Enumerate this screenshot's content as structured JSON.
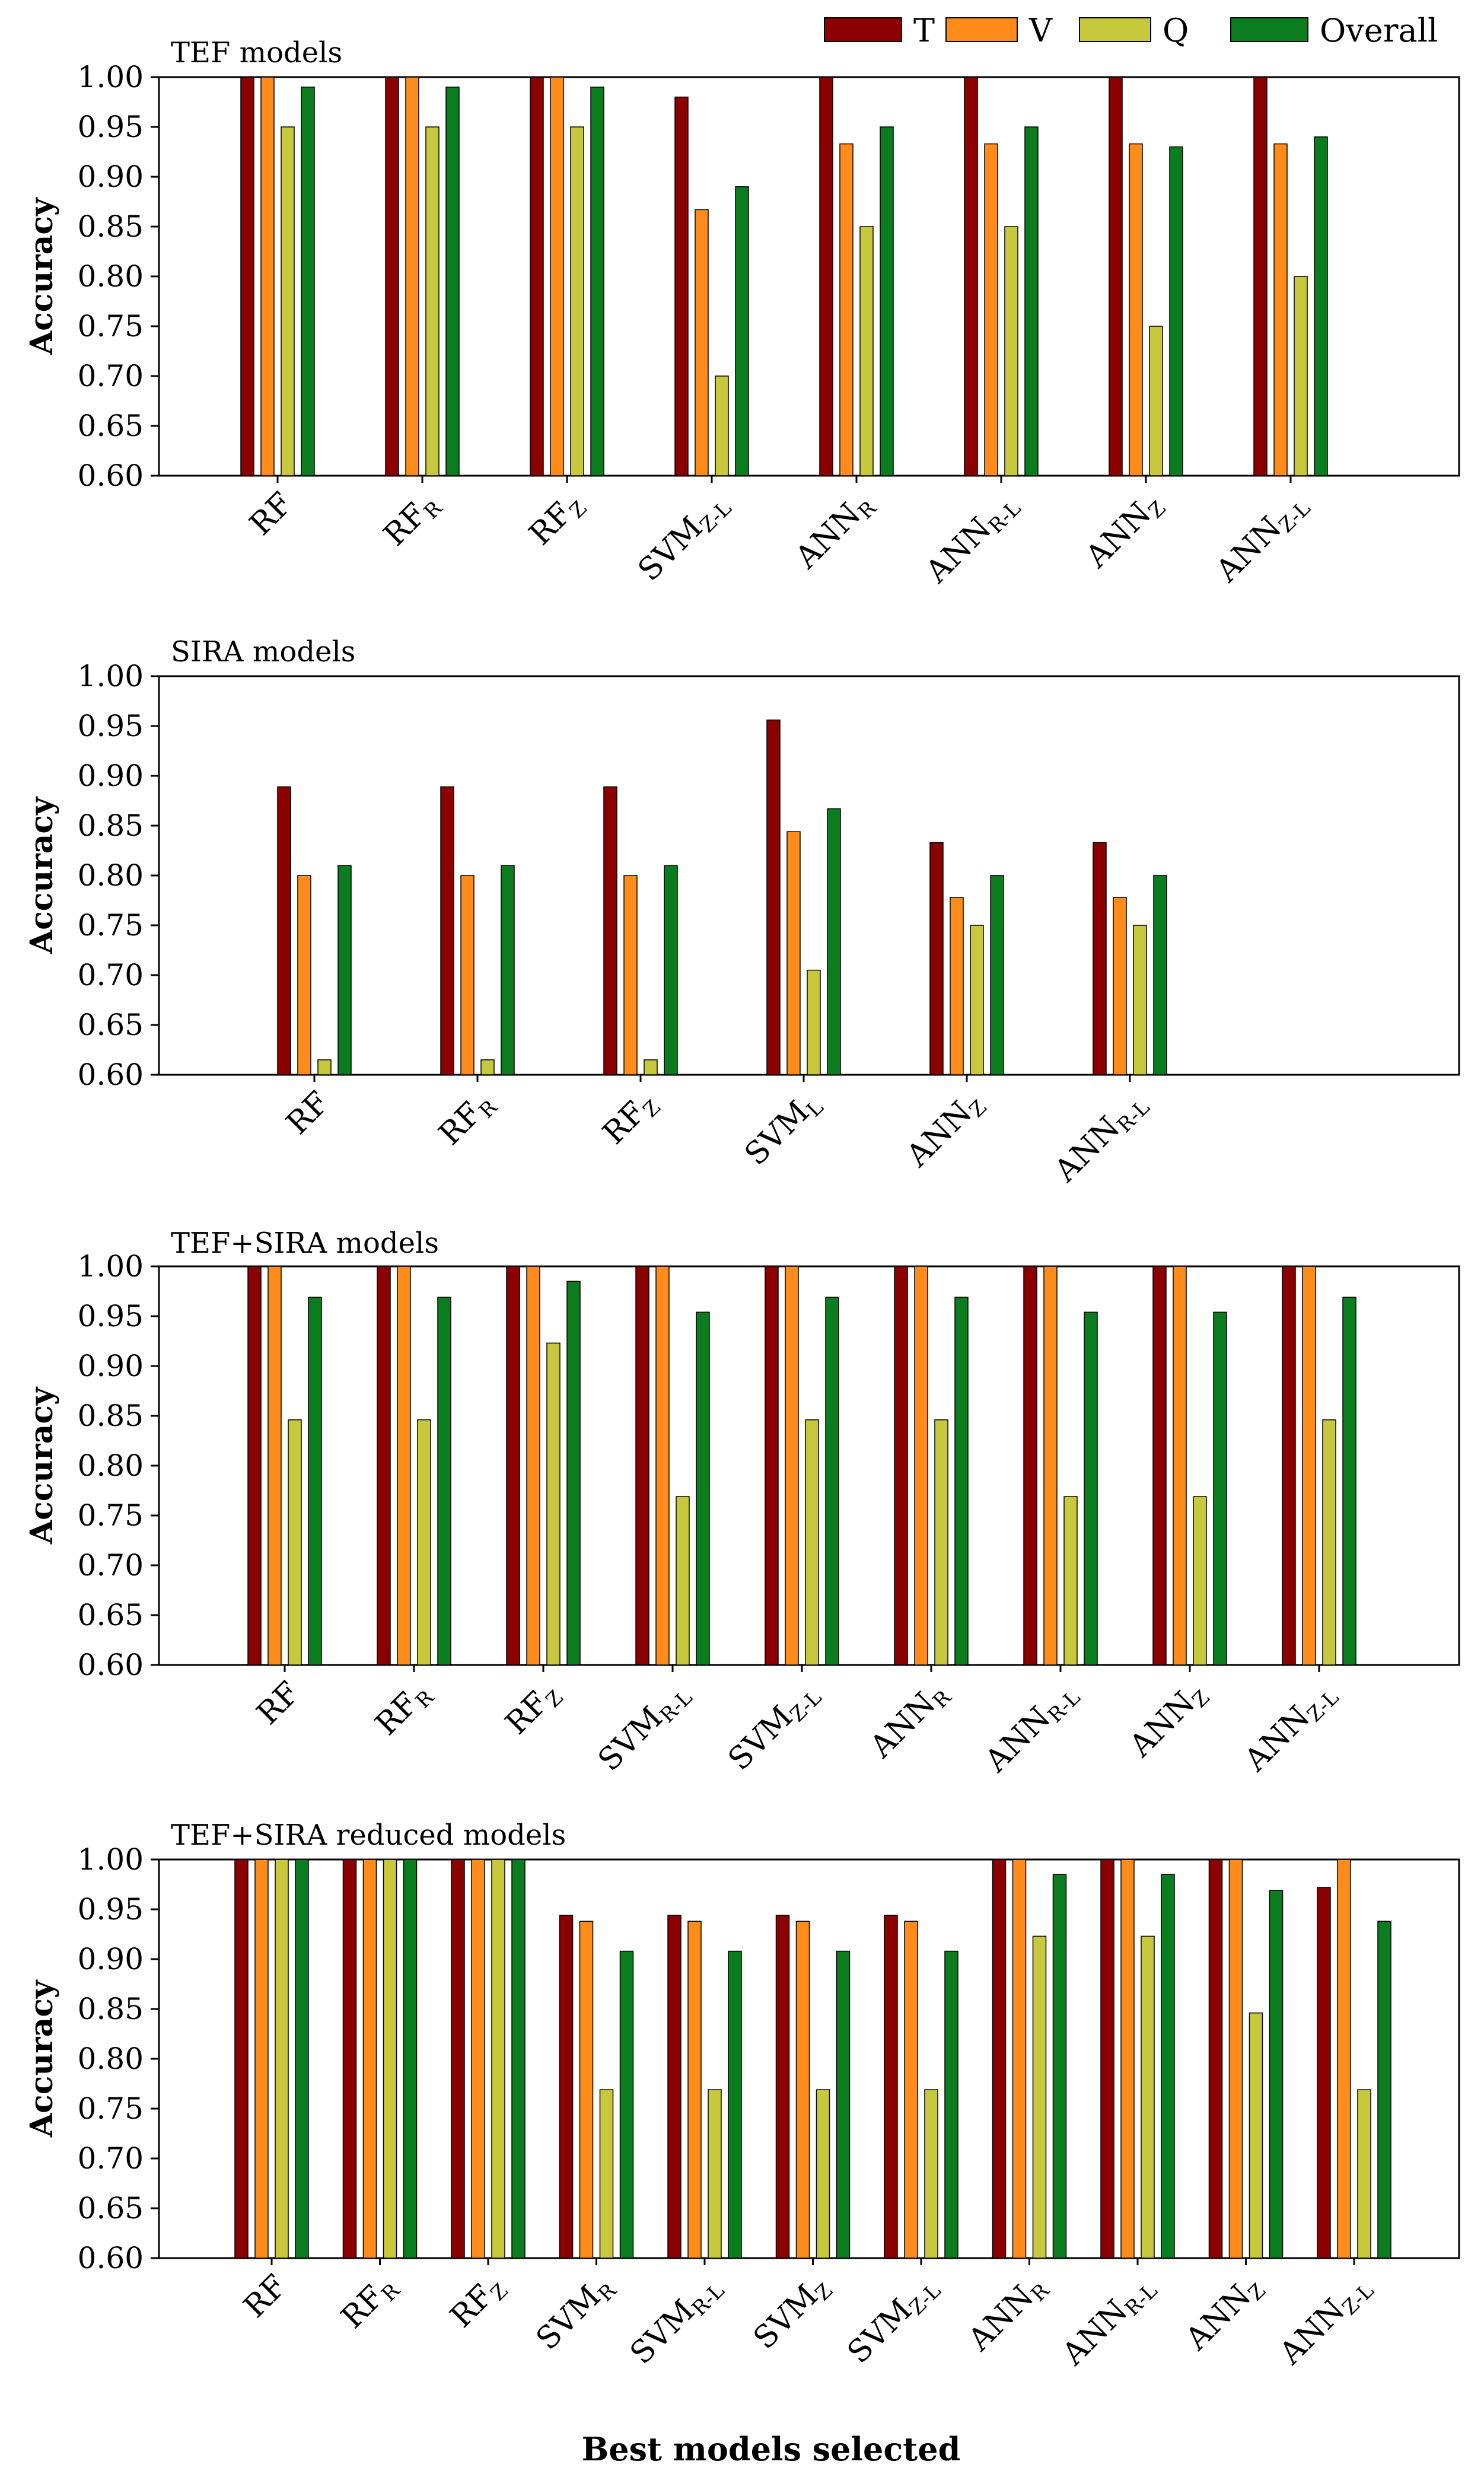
{
  "chart_data": [
    {
      "type": "bar",
      "title": "TEF models",
      "ylabel": "Accuracy",
      "ylim": [
        0.6,
        1.0
      ],
      "yticks": [
        "0.60",
        "0.65",
        "0.70",
        "0.75",
        "0.80",
        "0.85",
        "0.90",
        "0.95",
        "1.00"
      ],
      "categories": [
        {
          "main": "RF",
          "sub": ""
        },
        {
          "main": "RF",
          "sub": "R"
        },
        {
          "main": "RF",
          "sub": "Z"
        },
        {
          "main": "SVM",
          "sub": "Z-L"
        },
        {
          "main": "ANN",
          "sub": "R"
        },
        {
          "main": "ANN",
          "sub": "R-L"
        },
        {
          "main": "ANN",
          "sub": "Z"
        },
        {
          "main": "ANN",
          "sub": "Z-L"
        }
      ],
      "series": [
        {
          "name": "T",
          "values": [
            1.0,
            1.0,
            1.0,
            0.98,
            1.0,
            1.0,
            1.0,
            1.0
          ]
        },
        {
          "name": "V",
          "values": [
            1.0,
            1.0,
            1.0,
            0.867,
            0.933,
            0.933,
            0.933,
            0.933
          ]
        },
        {
          "name": "Q",
          "values": [
            0.95,
            0.95,
            0.95,
            0.7,
            0.85,
            0.85,
            0.75,
            0.8
          ]
        },
        {
          "name": "Overall",
          "values": [
            0.99,
            0.99,
            0.99,
            0.89,
            0.95,
            0.95,
            0.93,
            0.94
          ]
        }
      ]
    },
    {
      "type": "bar",
      "title": "SIRA models",
      "ylabel": "Accuracy",
      "ylim": [
        0.6,
        1.0
      ],
      "yticks": [
        "0.60",
        "0.65",
        "0.70",
        "0.75",
        "0.80",
        "0.85",
        "0.90",
        "0.95",
        "1.00"
      ],
      "categories": [
        {
          "main": "RF",
          "sub": ""
        },
        {
          "main": "RF",
          "sub": "R"
        },
        {
          "main": "RF",
          "sub": "Z"
        },
        {
          "main": "SVM",
          "sub": "L"
        },
        {
          "main": "ANN",
          "sub": "Z"
        },
        {
          "main": "ANN",
          "sub": "R-L"
        }
      ],
      "series": [
        {
          "name": "T",
          "values": [
            0.889,
            0.889,
            0.889,
            0.956,
            0.833,
            0.833
          ]
        },
        {
          "name": "V",
          "values": [
            0.8,
            0.8,
            0.8,
            0.844,
            0.778,
            0.778
          ]
        },
        {
          "name": "Q",
          "values": [
            0.615,
            0.615,
            0.615,
            0.705,
            0.75,
            0.75
          ]
        },
        {
          "name": "Overall",
          "values": [
            0.81,
            0.81,
            0.81,
            0.867,
            0.8,
            0.8
          ]
        }
      ]
    },
    {
      "type": "bar",
      "title": "TEF+SIRA models",
      "ylabel": "Accuracy",
      "ylim": [
        0.6,
        1.0
      ],
      "yticks": [
        "0.60",
        "0.65",
        "0.70",
        "0.75",
        "0.80",
        "0.85",
        "0.90",
        "0.95",
        "1.00"
      ],
      "categories": [
        {
          "main": "RF",
          "sub": ""
        },
        {
          "main": "RF",
          "sub": "R"
        },
        {
          "main": "RF",
          "sub": "Z"
        },
        {
          "main": "SVM",
          "sub": "R-L"
        },
        {
          "main": "SVM",
          "sub": "Z-L"
        },
        {
          "main": "ANN",
          "sub": "R"
        },
        {
          "main": "ANN",
          "sub": "R-L"
        },
        {
          "main": "ANN",
          "sub": "Z"
        },
        {
          "main": "ANN",
          "sub": "Z-L"
        }
      ],
      "series": [
        {
          "name": "T",
          "values": [
            1.0,
            1.0,
            1.0,
            1.0,
            1.0,
            1.0,
            1.0,
            1.0,
            1.0
          ]
        },
        {
          "name": "V",
          "values": [
            1.0,
            1.0,
            1.0,
            1.0,
            1.0,
            1.0,
            1.0,
            1.0,
            1.0
          ]
        },
        {
          "name": "Q",
          "values": [
            0.846,
            0.846,
            0.923,
            0.769,
            0.846,
            0.846,
            0.769,
            0.769,
            0.846
          ]
        },
        {
          "name": "Overall",
          "values": [
            0.969,
            0.969,
            0.985,
            0.954,
            0.969,
            0.969,
            0.954,
            0.954,
            0.969
          ]
        }
      ]
    },
    {
      "type": "bar",
      "title": "TEF+SIRA reduced models",
      "ylabel": "Accuracy",
      "ylim": [
        0.6,
        1.0
      ],
      "yticks": [
        "0.60",
        "0.65",
        "0.70",
        "0.75",
        "0.80",
        "0.85",
        "0.90",
        "0.95",
        "1.00"
      ],
      "categories": [
        {
          "main": "RF",
          "sub": ""
        },
        {
          "main": "RF",
          "sub": "R"
        },
        {
          "main": "RF",
          "sub": "Z"
        },
        {
          "main": "SVM",
          "sub": "R"
        },
        {
          "main": "SVM",
          "sub": "R-L"
        },
        {
          "main": "SVM",
          "sub": "Z"
        },
        {
          "main": "SVM",
          "sub": "Z-L"
        },
        {
          "main": "ANN",
          "sub": "R"
        },
        {
          "main": "ANN",
          "sub": "R-L"
        },
        {
          "main": "ANN",
          "sub": "Z"
        },
        {
          "main": "ANN",
          "sub": "Z-L"
        }
      ],
      "series": [
        {
          "name": "T",
          "values": [
            1.0,
            1.0,
            1.0,
            0.944,
            0.944,
            0.944,
            0.944,
            1.0,
            1.0,
            1.0,
            0.972
          ]
        },
        {
          "name": "V",
          "values": [
            1.0,
            1.0,
            1.0,
            0.938,
            0.938,
            0.938,
            0.938,
            1.0,
            1.0,
            1.0,
            1.0
          ]
        },
        {
          "name": "Q",
          "values": [
            1.0,
            1.0,
            1.0,
            0.769,
            0.769,
            0.769,
            0.769,
            0.923,
            0.923,
            0.846,
            0.769
          ]
        },
        {
          "name": "Overall",
          "values": [
            1.0,
            1.0,
            1.0,
            0.908,
            0.908,
            0.908,
            0.908,
            0.985,
            0.985,
            0.969,
            0.938
          ]
        }
      ]
    }
  ],
  "legend": [
    {
      "name": "T",
      "color": "#8B0000"
    },
    {
      "name": "V",
      "color": "#FF8C1A"
    },
    {
      "name": "Q",
      "color": "#C8C83C"
    },
    {
      "name": "Overall",
      "color": "#0B7D1E"
    }
  ],
  "xlabel": "Best models selected"
}
